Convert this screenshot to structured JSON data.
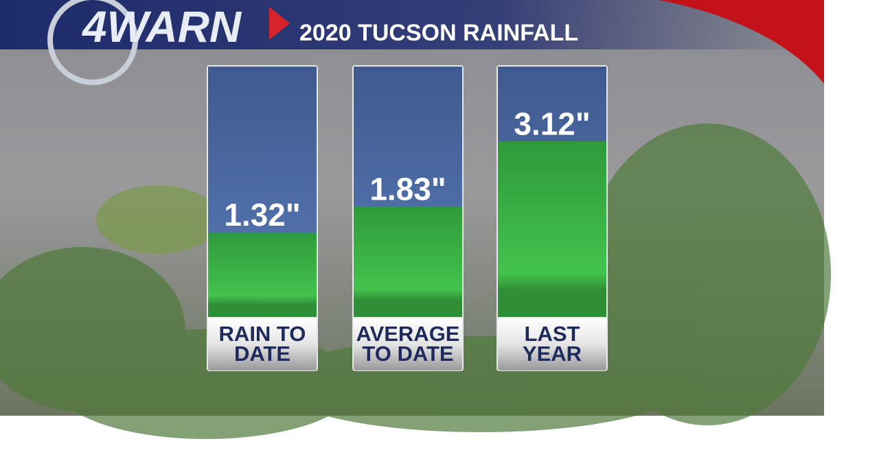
{
  "chart_data": {
    "type": "bar",
    "logo": "4WARN",
    "title": "2020 TUCSON RAINFALL",
    "categories": [
      [
        "RAIN TO",
        "DATE"
      ],
      [
        "AVERAGE",
        "TO DATE"
      ],
      [
        "LAST",
        "YEAR"
      ]
    ],
    "values": [
      1.32,
      1.83,
      3.12
    ],
    "value_labels": [
      "1.32\"",
      "1.83\"",
      "3.12\""
    ],
    "color": "#3cb94a",
    "ylim": [
      -0.35,
      4.6
    ]
  }
}
